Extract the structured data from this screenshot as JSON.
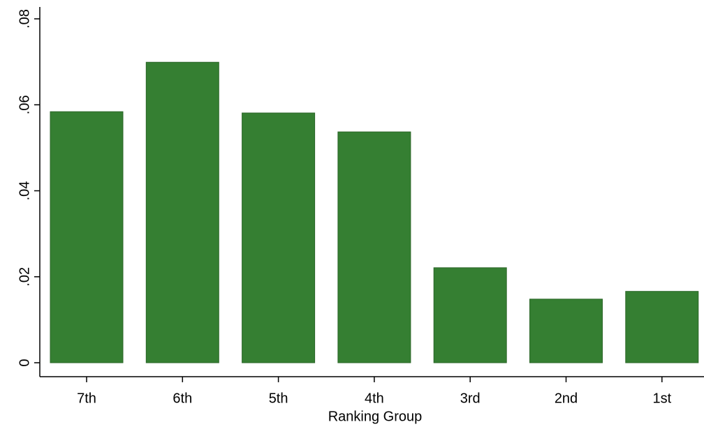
{
  "chart_data": {
    "type": "bar",
    "x_label": "Ranking Group",
    "categories": [
      "7th",
      "6th",
      "5th",
      "4th",
      "3rd",
      "2nd",
      "1st"
    ],
    "values": [
      0.0584,
      0.0699,
      0.0581,
      0.0537,
      0.0221,
      0.0148,
      0.0166
    ],
    "color": "#357f32",
    "ylim": [
      0,
      0.08
    ],
    "yticks": [
      0,
      {
        "value": 0.02,
        "label": ".02"
      },
      {
        "value": 0.04,
        "label": ".04"
      },
      {
        "value": 0.06,
        "label": ".06"
      },
      {
        "value": 0.08,
        "label": ".08"
      }
    ],
    "grid": false
  }
}
